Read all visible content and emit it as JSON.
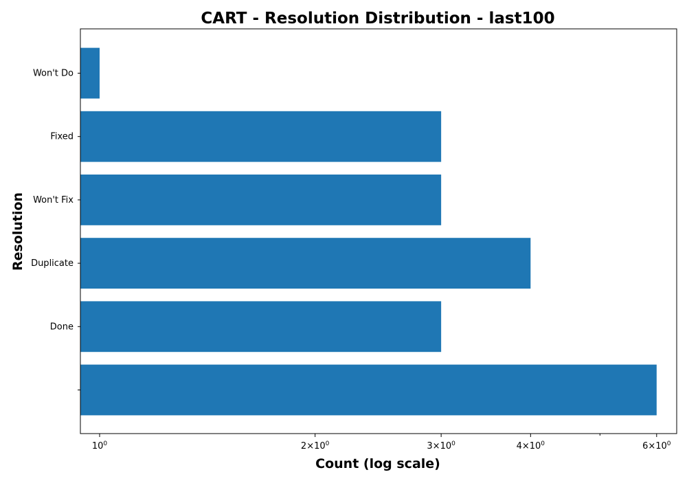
{
  "chart_data": {
    "type": "bar",
    "orientation": "horizontal",
    "title": "CART - Resolution Distribution - last100",
    "xlabel": "Count (log scale)",
    "ylabel": "Resolution",
    "x_scale": "log",
    "xlim": [
      0.94,
      6.4
    ],
    "x_major_ticks": [
      1,
      2,
      3,
      4,
      6
    ],
    "x_tick_labels": [
      "10^0",
      "2×10^0",
      "3×10^0",
      "4×10^0",
      "6×10^0"
    ],
    "x_minor_ticks": [
      5
    ],
    "categories": [
      "",
      "Done",
      "Duplicate",
      "Won't Fix",
      "Fixed",
      "Won't Do"
    ],
    "values": [
      6,
      3,
      4,
      3,
      3,
      1
    ],
    "bar_color": "#1f77b4",
    "grid": false,
    "legend": "none"
  }
}
